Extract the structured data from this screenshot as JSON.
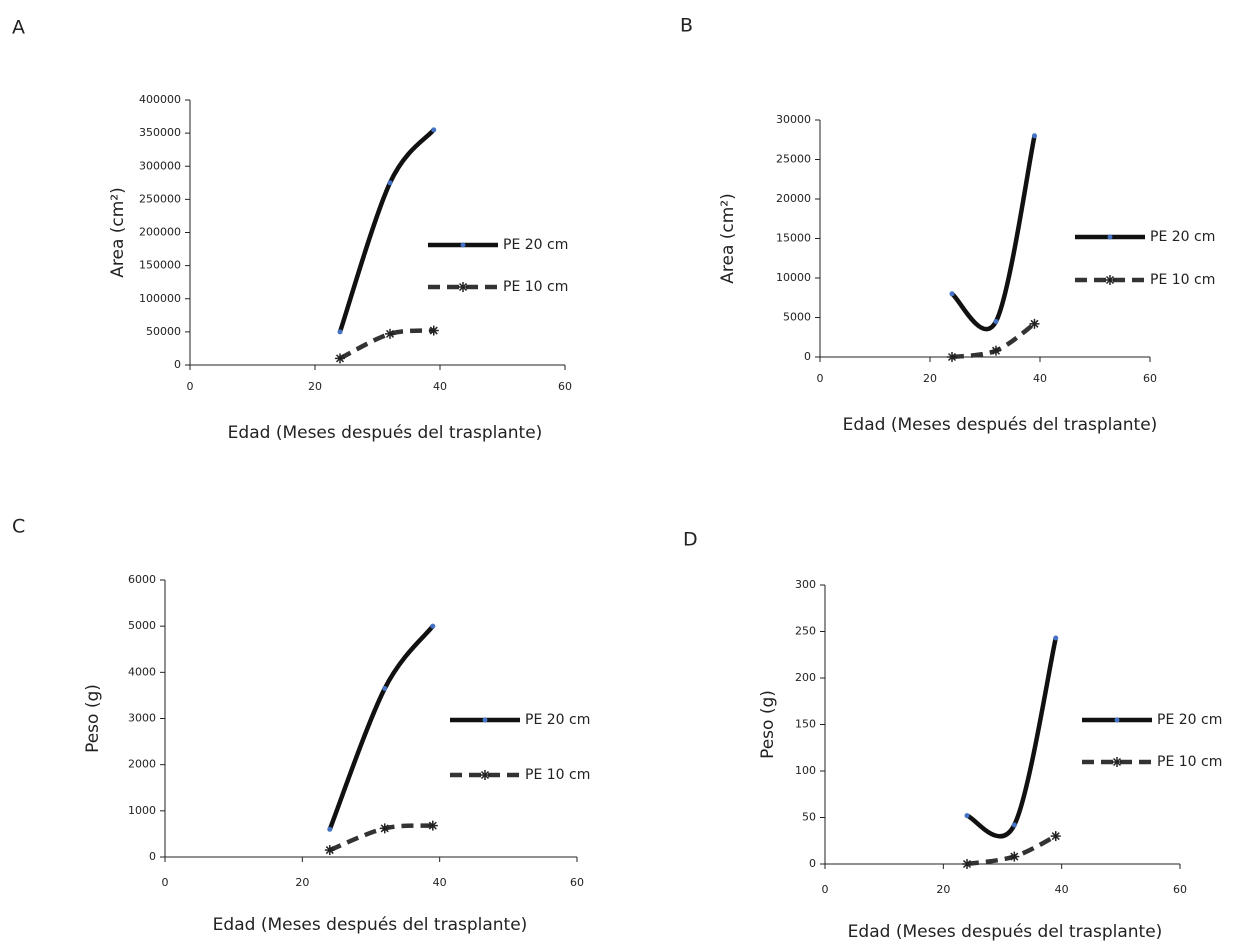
{
  "chart_data": [
    {
      "type": "line",
      "panel": "A",
      "xlabel": "Edad (Meses después del trasplante)",
      "ylabel": "Area (cm²)",
      "x": [
        24,
        32,
        39
      ],
      "xlim": [
        0,
        60
      ],
      "xticks": [
        0,
        20,
        40,
        60
      ],
      "ylim": [
        0,
        400000
      ],
      "yticks": [
        0,
        50000,
        100000,
        150000,
        200000,
        250000,
        300000,
        350000,
        400000
      ],
      "smooth": true,
      "series": [
        {
          "name": "PE 20 cm",
          "color": "#111111",
          "marker_color": "#4472c4",
          "dashed": false,
          "values": [
            50000,
            275000,
            355000
          ]
        },
        {
          "name": "PE 10 cm",
          "color": "#333333",
          "marker_color": "#222222",
          "dashed": true,
          "values": [
            10000,
            47000,
            52000
          ]
        }
      ]
    },
    {
      "type": "line",
      "panel": "B",
      "xlabel": "Edad (Meses después del trasplante)",
      "ylabel": "Area (cm²)",
      "x": [
        24,
        32,
        39
      ],
      "xlim": [
        0,
        60
      ],
      "xticks": [
        0,
        20,
        40,
        60
      ],
      "ylim": [
        0,
        30000
      ],
      "yticks": [
        0,
        5000,
        10000,
        15000,
        20000,
        25000,
        30000
      ],
      "smooth": true,
      "series": [
        {
          "name": "PE 20 cm",
          "color": "#111111",
          "marker_color": "#4472c4",
          "dashed": false,
          "values": [
            8000,
            4500,
            28000
          ]
        },
        {
          "name": "PE 10 cm",
          "color": "#333333",
          "marker_color": "#222222",
          "dashed": true,
          "values": [
            0,
            800,
            4200
          ]
        }
      ]
    },
    {
      "type": "line",
      "panel": "C",
      "xlabel": "Edad (Meses después del trasplante)",
      "ylabel": "Peso (g)",
      "x": [
        24,
        32,
        39
      ],
      "xlim": [
        0,
        60
      ],
      "xticks": [
        0,
        20,
        40,
        60
      ],
      "ylim": [
        0,
        6000
      ],
      "yticks": [
        0,
        1000,
        2000,
        3000,
        4000,
        5000,
        6000
      ],
      "smooth": true,
      "series": [
        {
          "name": "PE 20 cm",
          "color": "#111111",
          "marker_color": "#4472c4",
          "dashed": false,
          "values": [
            600,
            3650,
            5000
          ]
        },
        {
          "name": "PE 10 cm",
          "color": "#333333",
          "marker_color": "#222222",
          "dashed": true,
          "values": [
            150,
            620,
            680
          ]
        }
      ]
    },
    {
      "type": "line",
      "panel": "D",
      "xlabel": "Edad (Meses después del trasplante)",
      "ylabel": "Peso (g)",
      "x": [
        24,
        32,
        39
      ],
      "xlim": [
        0,
        60
      ],
      "xticks": [
        0,
        20,
        40,
        60
      ],
      "ylim": [
        0,
        300
      ],
      "yticks": [
        0,
        50,
        100,
        150,
        200,
        250,
        300
      ],
      "smooth": true,
      "series": [
        {
          "name": "PE 20 cm",
          "color": "#111111",
          "marker_color": "#4472c4",
          "dashed": false,
          "values": [
            52,
            42,
            243
          ]
        },
        {
          "name": "PE 10 cm",
          "color": "#333333",
          "marker_color": "#222222",
          "dashed": true,
          "values": [
            0,
            8,
            30
          ]
        }
      ]
    }
  ]
}
